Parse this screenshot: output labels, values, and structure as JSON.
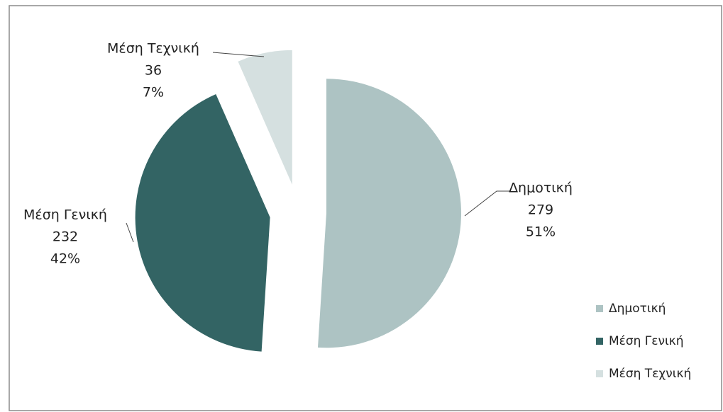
{
  "chart_data": {
    "type": "pie",
    "categories": [
      "Δημοτική",
      "Μέση Γενική",
      "Μέση Τεχνική"
    ],
    "values": [
      279,
      232,
      36
    ],
    "percent_labels": [
      "51%",
      "42%",
      "7%"
    ],
    "colors": [
      "#adc3c3",
      "#336464",
      "#d5e0e0"
    ],
    "legend": "right"
  }
}
